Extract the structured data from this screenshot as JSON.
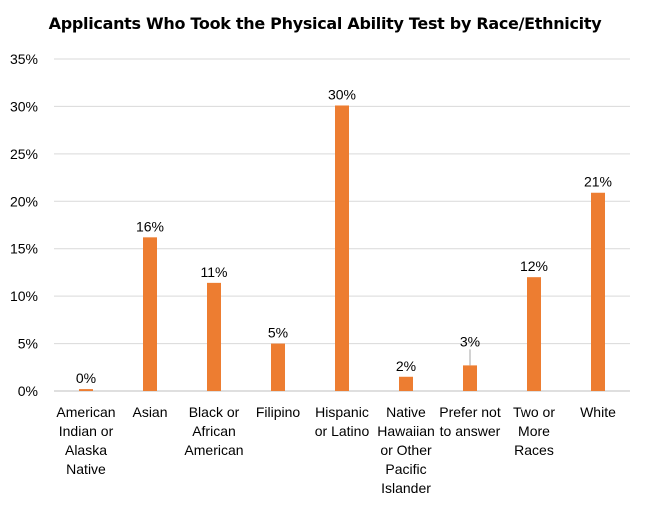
{
  "chart_data": {
    "type": "bar",
    "title": "Applicants Who Took the Physical Ability Test by Race/Ethnicity",
    "categories": [
      [
        "American",
        "Indian or",
        "Alaska",
        "Native"
      ],
      [
        "Asian"
      ],
      [
        "Black or",
        "African",
        "American"
      ],
      [
        "Filipino"
      ],
      [
        "Hispanic",
        "or Latino"
      ],
      [
        "Native",
        "Hawaiian",
        "or Other",
        "Pacific",
        "Islander"
      ],
      [
        "Prefer not",
        "to answer"
      ],
      [
        "Two or",
        "More",
        "Races"
      ],
      [
        "White"
      ]
    ],
    "values": [
      0.2,
      16.2,
      11.4,
      5.0,
      30.1,
      1.5,
      2.7,
      12.0,
      20.9
    ],
    "data_labels": [
      "0%",
      "16%",
      "11%",
      "5%",
      "30%",
      "2%",
      "3%",
      "12%",
      "21%"
    ],
    "yticks": [
      "0%",
      "5%",
      "10%",
      "15%",
      "20%",
      "25%",
      "30%",
      "35%"
    ],
    "ylim": [
      0,
      35
    ],
    "xlabel": "",
    "ylabel": "",
    "grid": true,
    "legend": "none",
    "bar_color": "#ED7D31",
    "grid_color": "#D9D9D9"
  }
}
